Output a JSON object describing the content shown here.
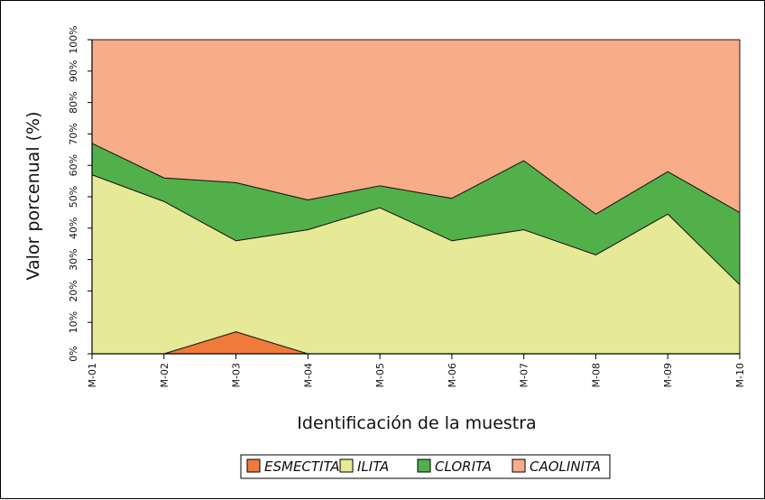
{
  "chart_data": {
    "type": "area",
    "stacked": true,
    "percent": true,
    "categories": [
      "M-01",
      "M-02",
      "M-03",
      "M-04",
      "M-05",
      "M-06",
      "M-07",
      "M-08",
      "M-09",
      "M-10"
    ],
    "series": [
      {
        "name": "ESMECTITA",
        "color": "#f07a3c",
        "values": [
          0,
          0,
          7,
          0,
          0,
          0,
          0,
          0,
          0,
          0
        ]
      },
      {
        "name": "ILITA",
        "color": "#e6e996",
        "values": [
          57,
          48.5,
          29,
          39.5,
          46.5,
          36,
          39.5,
          31.5,
          44.5,
          22
        ]
      },
      {
        "name": "CLORITA",
        "color": "#52b04a",
        "values": [
          10,
          7.5,
          18.5,
          9.5,
          7,
          13.5,
          22,
          13,
          13.5,
          23
        ]
      },
      {
        "name": "CAOLINITA",
        "color": "#f9ac88",
        "values": [
          33,
          44,
          45.5,
          51,
          46.5,
          50.5,
          38.5,
          55.5,
          42,
          55
        ]
      }
    ],
    "yticks": [
      "0%",
      "10%",
      "20%",
      "30%",
      "40%",
      "50%",
      "60%",
      "70%",
      "80%",
      "90%",
      "100%"
    ],
    "ylim": [
      0,
      100
    ],
    "xlabel": "Identificación de la muestra",
    "ylabel": "Valor porcenual (%)",
    "legend_position": "bottom",
    "grid": false
  }
}
